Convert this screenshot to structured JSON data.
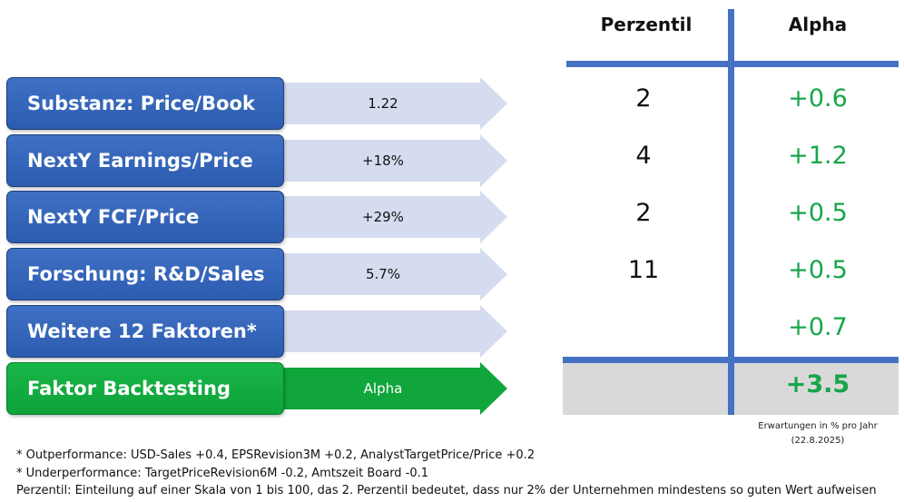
{
  "factors": [
    {
      "label": "Substanz: Price/Book",
      "value": "1.22",
      "percentile": "2",
      "alpha": "+0.6"
    },
    {
      "label": "NextY Earnings/Price",
      "value": "+18%",
      "percentile": "4",
      "alpha": "+1.2"
    },
    {
      "label": "NextY FCF/Price",
      "value": "+29%",
      "percentile": "2",
      "alpha": "+0.5"
    },
    {
      "label": "Forschung: R&D/Sales",
      "value": "5.7%",
      "percentile": "11",
      "alpha": "+0.5"
    },
    {
      "label": "Weitere 12 Faktoren*",
      "value": "",
      "percentile": "",
      "alpha": "+0.7"
    }
  ],
  "backtesting": {
    "label": "Faktor Backtesting",
    "value": "Alpha",
    "total_alpha": "+3.5"
  },
  "table": {
    "header_percentile": "Perzentil",
    "header_alpha": "Alpha"
  },
  "note": {
    "line1": "Erwartungen in % pro Jahr",
    "line2": "(22.8.2025)"
  },
  "footnotes": {
    "outperformance": "* Outperformance: USD-Sales +0.4, EPSRevision3M +0.2, AnalystTargetPrice/Price +0.2",
    "underperformance": "* Underperformance: TargetPriceRevision6M -0.2, Amtszeit Board -0.1",
    "perzentil": "Perzentil: Einteilung auf einer Skala von 1 bis 100, das 2. Perzentil bedeutet, dass nur 2% der Unternehmen mindestens so guten Wert aufweisen"
  },
  "colors": {
    "blue": "#2f5fb3",
    "green": "#10a63c",
    "alpha_text": "#17a64a",
    "arrow": "#d6dcef",
    "grid": "#4472c4",
    "total_bg": "#d9d9d9"
  }
}
